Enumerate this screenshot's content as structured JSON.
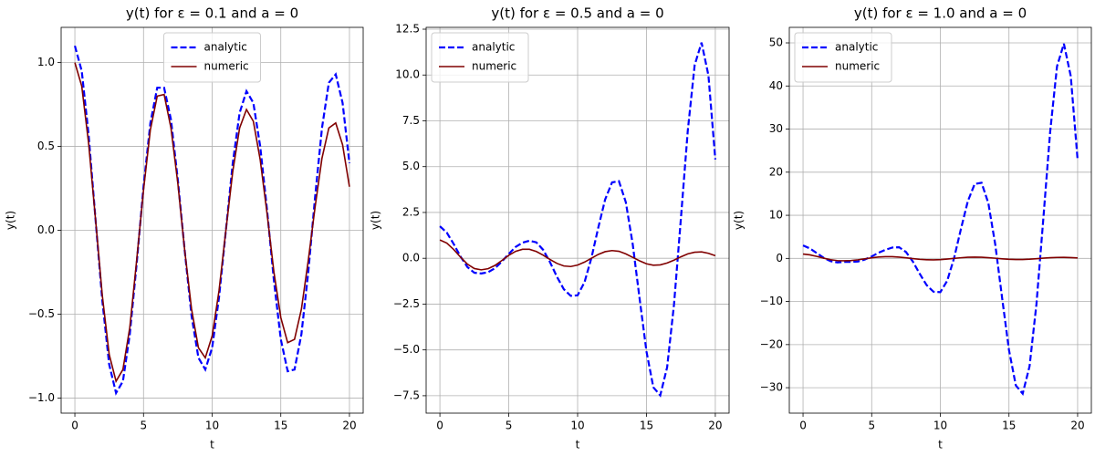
{
  "chart_data": [
    {
      "type": "line",
      "title": "y(t) for ε = 0.1 and a = 0",
      "x_label": "t",
      "y_label": "y(t)",
      "x": [
        0,
        0.5,
        1,
        1.5,
        2,
        2.5,
        3,
        3.5,
        4,
        4.5,
        5,
        5.5,
        6,
        6.5,
        7,
        7.5,
        8,
        8.5,
        9,
        9.5,
        10,
        10.5,
        11,
        11.5,
        12,
        12.5,
        13,
        13.5,
        14,
        14.5,
        15,
        15.5,
        16,
        16.5,
        17,
        17.5,
        18,
        18.5,
        19,
        19.5,
        20
      ],
      "series": [
        {
          "name": "analytic",
          "color": "#0000ff",
          "dash": "dashed",
          "values": [
            1.1,
            0.95,
            0.57,
            0.07,
            -0.42,
            -0.8,
            -0.97,
            -0.9,
            -0.62,
            -0.2,
            0.26,
            0.64,
            0.85,
            0.85,
            0.66,
            0.3,
            -0.12,
            -0.51,
            -0.76,
            -0.83,
            -0.7,
            -0.4,
            0.0,
            0.4,
            0.7,
            0.83,
            0.76,
            0.5,
            0.12,
            -0.3,
            -0.65,
            -0.84,
            -0.83,
            -0.62,
            -0.25,
            0.2,
            0.61,
            0.88,
            0.93,
            0.76,
            0.4
          ]
        },
        {
          "name": "numeric",
          "color": "#800000",
          "dash": "solid",
          "values": [
            1.0,
            0.86,
            0.52,
            0.07,
            -0.39,
            -0.74,
            -0.9,
            -0.83,
            -0.58,
            -0.18,
            0.24,
            0.6,
            0.8,
            0.81,
            0.61,
            0.28,
            -0.12,
            -0.47,
            -0.7,
            -0.76,
            -0.63,
            -0.36,
            0.0,
            0.35,
            0.61,
            0.72,
            0.65,
            0.42,
            0.1,
            -0.25,
            -0.52,
            -0.67,
            -0.65,
            -0.47,
            -0.18,
            0.14,
            0.43,
            0.61,
            0.64,
            0.51,
            0.26
          ]
        }
      ],
      "xlim": [
        -1,
        21
      ],
      "xticks": [
        0,
        5,
        10,
        15,
        20
      ],
      "ylim": [
        -1.09,
        1.21
      ],
      "yticks": [
        {
          "value": -1.0,
          "label": "−1.0"
        },
        {
          "value": -0.5,
          "label": "−0.5"
        },
        {
          "value": 0.0,
          "label": "0.0"
        },
        0.5,
        {
          "value": 1.0,
          "label": "1.0"
        }
      ],
      "grid": true,
      "legend": "upper center"
    },
    {
      "type": "line",
      "title": "y(t) for ε = 0.5 and a = 0",
      "x_label": "t",
      "y_label": "y(t)",
      "x": [
        0,
        0.5,
        1,
        1.5,
        2,
        2.5,
        3,
        3.5,
        4,
        4.5,
        5,
        5.5,
        6,
        6.5,
        7,
        7.5,
        8,
        8.5,
        9,
        9.5,
        10,
        10.5,
        11,
        11.5,
        12,
        12.5,
        13,
        13.5,
        14,
        14.5,
        15,
        15.5,
        16,
        16.5,
        17,
        17.5,
        18,
        18.5,
        19,
        19.5,
        20
      ],
      "series": [
        {
          "name": "analytic",
          "color": "#0000ff",
          "dash": "dashed",
          "values": [
            1.75,
            1.4,
            0.78,
            0.09,
            -0.48,
            -0.79,
            -0.83,
            -0.76,
            -0.54,
            -0.18,
            0.24,
            0.62,
            0.85,
            0.96,
            0.87,
            0.46,
            -0.22,
            -1.01,
            -1.69,
            -2.05,
            -2.02,
            -1.31,
            0.01,
            1.67,
            3.21,
            4.14,
            4.21,
            3.06,
            0.78,
            -2.19,
            -5.08,
            -7.04,
            -7.48,
            -5.95,
            -2.52,
            2.16,
            6.96,
            10.54,
            11.77,
            9.98,
            5.39
          ]
        },
        {
          "name": "numeric",
          "color": "#800000",
          "dash": "solid",
          "values": [
            1.0,
            0.83,
            0.48,
            0.06,
            -0.32,
            -0.56,
            -0.63,
            -0.57,
            -0.39,
            -0.12,
            0.16,
            0.38,
            0.49,
            0.49,
            0.37,
            0.17,
            -0.07,
            -0.28,
            -0.42,
            -0.45,
            -0.37,
            -0.21,
            0.0,
            0.21,
            0.36,
            0.42,
            0.38,
            0.24,
            0.05,
            -0.14,
            -0.3,
            -0.38,
            -0.36,
            -0.26,
            -0.1,
            0.08,
            0.24,
            0.33,
            0.35,
            0.27,
            0.14
          ]
        }
      ],
      "xlim": [
        -1,
        21
      ],
      "xticks": [
        0,
        5,
        10,
        15,
        20
      ],
      "ylim": [
        -8.45,
        12.6
      ],
      "yticks": [
        {
          "value": -7.5,
          "label": "−7.5"
        },
        {
          "value": -5.0,
          "label": "−5.0"
        },
        {
          "value": -2.5,
          "label": "−2.5"
        },
        {
          "value": 0.0,
          "label": "0.0"
        },
        2.5,
        {
          "value": 5.0,
          "label": "5.0"
        },
        7.5,
        {
          "value": 10.0,
          "label": "10.0"
        },
        12.5
      ],
      "grid": true,
      "legend": "upper left"
    },
    {
      "type": "line",
      "title": "y(t) for ε = 1.0 and a = 0",
      "x_label": "t",
      "y_label": "y(t)",
      "x": [
        0,
        0.5,
        1,
        1.5,
        2,
        2.5,
        3,
        3.5,
        4,
        4.5,
        5,
        5.5,
        6,
        6.5,
        7,
        7.5,
        8,
        8.5,
        9,
        9.5,
        10,
        10.5,
        11,
        11.5,
        12,
        12.5,
        13,
        13.5,
        14,
        14.5,
        15,
        15.5,
        16,
        16.5,
        17,
        17.5,
        18,
        18.5,
        19,
        19.5,
        20
      ],
      "series": [
        {
          "name": "analytic",
          "color": "#0000ff",
          "dash": "dashed",
          "values": [
            3.0,
            2.31,
            1.23,
            0.13,
            -0.64,
            -0.94,
            -0.8,
            -0.81,
            -0.73,
            -0.28,
            0.45,
            1.3,
            1.99,
            2.51,
            2.58,
            1.48,
            -0.74,
            -3.58,
            -6.19,
            -7.73,
            -7.84,
            -5.2,
            0.05,
            6.81,
            13.24,
            17.25,
            17.55,
            12.79,
            3.24,
            -9.16,
            -21.26,
            -29.48,
            -31.38,
            -24.99,
            -10.63,
            9.11,
            29.38,
            44.56,
            49.8,
            42.29,
            22.85
          ]
        },
        {
          "name": "numeric",
          "color": "#800000",
          "dash": "solid",
          "values": [
            1.0,
            0.82,
            0.46,
            0.06,
            -0.3,
            -0.51,
            -0.56,
            -0.5,
            -0.33,
            -0.1,
            0.13,
            0.31,
            0.39,
            0.39,
            0.29,
            0.13,
            -0.05,
            -0.22,
            -0.31,
            -0.33,
            -0.28,
            -0.15,
            0.0,
            0.15,
            0.26,
            0.3,
            0.27,
            0.17,
            0.04,
            -0.1,
            -0.21,
            -0.26,
            -0.26,
            -0.19,
            -0.07,
            0.06,
            0.17,
            0.23,
            0.25,
            0.19,
            0.1
          ]
        }
      ],
      "xlim": [
        -1,
        21
      ],
      "xticks": [
        0,
        5,
        10,
        15,
        20
      ],
      "ylim": [
        -35.9,
        53.6
      ],
      "yticks": [
        {
          "value": -30,
          "label": "−30"
        },
        {
          "value": -20,
          "label": "−20"
        },
        {
          "value": -10,
          "label": "−10"
        },
        0,
        10,
        20,
        30,
        40,
        50
      ],
      "grid": true,
      "legend": "upper left"
    }
  ]
}
